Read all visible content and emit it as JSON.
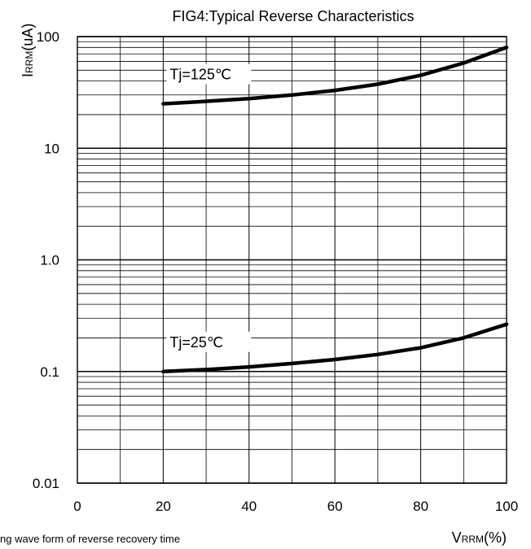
{
  "chart_data": {
    "type": "line",
    "title": "FIG4:Typical Reverse Characteristics",
    "ylabel": {
      "main": "I",
      "sub": "RRM",
      "unit": "(uA)"
    },
    "xlabel": {
      "main": "V",
      "sub": "RRM",
      "unit": "(%)"
    },
    "yscale": "log",
    "ylim": [
      0.01,
      100
    ],
    "xlim": [
      0,
      100
    ],
    "y_ticks": [
      "100",
      "10",
      "1.0",
      "0.1",
      "0.01"
    ],
    "x_ticks": [
      "0",
      "20",
      "40",
      "60",
      "80",
      "100"
    ],
    "grid": true,
    "series": [
      {
        "name": "Tj=125℃",
        "x": [
          20,
          30,
          40,
          50,
          60,
          70,
          80,
          90,
          100
        ],
        "y": [
          25,
          26.3,
          27.8,
          30,
          33,
          37.5,
          45,
          58,
          80
        ]
      },
      {
        "name": "Tj=25℃",
        "x": [
          20,
          30,
          40,
          50,
          60,
          70,
          80,
          90,
          100
        ],
        "y": [
          0.1,
          0.104,
          0.11,
          0.118,
          0.128,
          0.142,
          0.163,
          0.2,
          0.265
        ]
      }
    ]
  },
  "footer_text": "ng wave form of reverse recovery time"
}
